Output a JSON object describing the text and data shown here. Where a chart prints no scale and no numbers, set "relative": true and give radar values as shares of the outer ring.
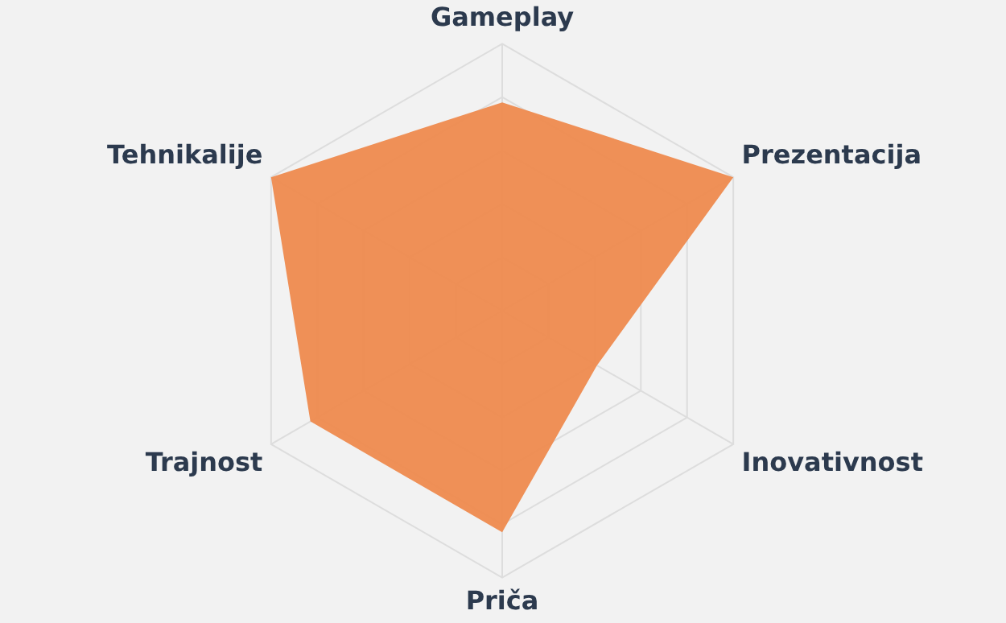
{
  "chart_data": {
    "type": "radar",
    "relative": true,
    "grid": true,
    "legend": false,
    "categories": [
      "Gameplay",
      "Prezentacija",
      "Inovativnost",
      "Priča",
      "Trajnost",
      "Tehnikalije"
    ],
    "series": [
      {
        "color": "#ee8a4e",
        "values": [
          0.78,
          1,
          0.41,
          0.83,
          0.83,
          1
        ]
      }
    ]
  }
}
